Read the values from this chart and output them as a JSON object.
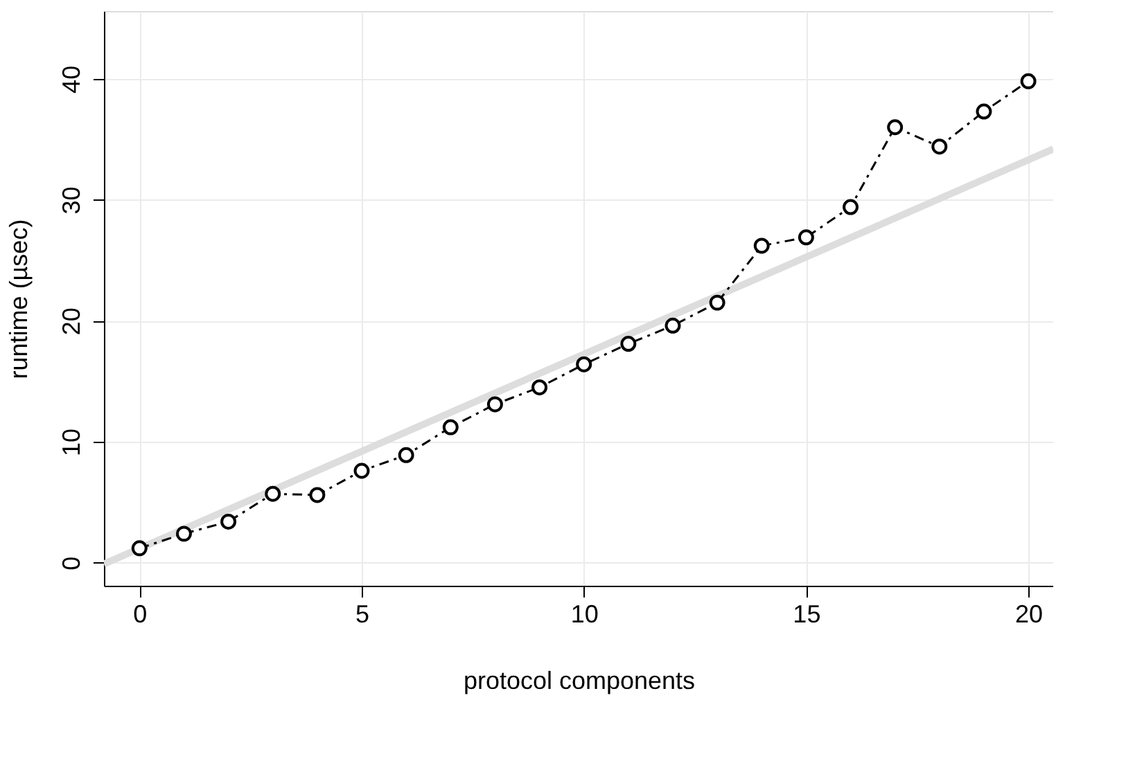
{
  "chart_data": {
    "type": "line",
    "xlabel": "protocol components",
    "ylabel": "runtime (µsec)",
    "x": [
      0,
      1,
      2,
      3,
      4,
      5,
      6,
      7,
      8,
      9,
      10,
      11,
      12,
      13,
      14,
      15,
      16,
      17,
      18,
      19,
      20
    ],
    "series": [
      {
        "color": "#dddddd",
        "x": [
          -0.8,
          20.56
        ],
        "values": [
          -0.1,
          34.2
        ],
        "marker": "none",
        "line_style": "solid"
      },
      {
        "color": "#000000",
        "values": [
          1.2,
          2.4,
          3.4,
          5.7,
          5.6,
          7.6,
          8.9,
          11.2,
          13.1,
          14.5,
          16.4,
          18.1,
          19.6,
          21.5,
          26.2,
          26.9,
          29.4,
          36.0,
          34.4,
          37.3,
          39.8
        ],
        "marker": "circle",
        "line_style": "dashed"
      }
    ],
    "xlim": [
      -0.8,
      20.56
    ],
    "ylim": [
      -1.9,
      45.6
    ],
    "xticks": [
      0,
      5,
      10,
      15,
      20
    ],
    "yticks": [
      0,
      10,
      20,
      30,
      40
    ],
    "grid": true
  }
}
